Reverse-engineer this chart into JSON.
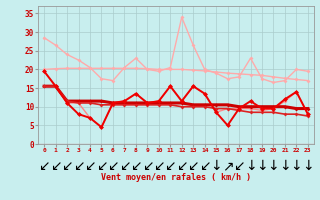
{
  "background_color": "#c8eeee",
  "grid_color": "#aacccc",
  "xlim": [
    -0.5,
    23.5
  ],
  "ylim": [
    0,
    37
  ],
  "yticks": [
    0,
    5,
    10,
    15,
    20,
    25,
    30,
    35
  ],
  "xticks": [
    0,
    1,
    2,
    3,
    4,
    5,
    6,
    7,
    8,
    9,
    10,
    11,
    12,
    13,
    14,
    15,
    16,
    17,
    18,
    19,
    20,
    21,
    22,
    23
  ],
  "hours": [
    0,
    1,
    2,
    3,
    4,
    5,
    6,
    7,
    8,
    9,
    10,
    11,
    12,
    13,
    14,
    15,
    16,
    17,
    18,
    19,
    20,
    21,
    22,
    23
  ],
  "xlabel": "Vent moyen/en rafales ( km/h )",
  "series": [
    {
      "name": "rafales_obs",
      "color": "#ffaaaa",
      "linewidth": 1.0,
      "marker": "D",
      "markersize": 2.0,
      "values": [
        28.5,
        26.5,
        24.0,
        22.5,
        20.5,
        17.5,
        17.0,
        20.5,
        23.0,
        20.0,
        19.5,
        20.5,
        34.0,
        26.5,
        20.0,
        19.0,
        17.5,
        18.0,
        23.0,
        17.5,
        16.5,
        17.0,
        20.0,
        19.5
      ]
    },
    {
      "name": "rafales_clim_mean",
      "color": "#ffaaaa",
      "linewidth": 1.0,
      "marker": "D",
      "markersize": 2.0,
      "values": [
        20.0,
        20.2,
        20.3,
        20.3,
        20.3,
        20.3,
        20.3,
        20.3,
        20.3,
        20.2,
        20.0,
        20.0,
        20.0,
        19.8,
        19.6,
        19.3,
        19.0,
        18.8,
        18.6,
        18.4,
        18.0,
        17.6,
        17.3,
        17.0
      ]
    },
    {
      "name": "vent_clim_top",
      "color": "#ff8888",
      "linewidth": 1.0,
      "marker": "D",
      "markersize": 2.0,
      "values": [
        19.5,
        15.5,
        11.0,
        11.0,
        7.0,
        4.5,
        11.0,
        11.5,
        13.5,
        11.0,
        11.5,
        15.5,
        11.5,
        15.5,
        13.5,
        8.5,
        9.5,
        9.5,
        9.5,
        9.0,
        9.5,
        11.5,
        14.0,
        8.0
      ]
    },
    {
      "name": "vent_clim_mean_bold",
      "color": "#cc0000",
      "linewidth": 2.2,
      "marker": "D",
      "markersize": 2.0,
      "values": [
        15.5,
        15.5,
        11.5,
        11.5,
        11.5,
        11.5,
        11.0,
        11.0,
        11.0,
        11.0,
        11.0,
        11.0,
        11.0,
        10.5,
        10.5,
        10.5,
        10.5,
        10.0,
        10.0,
        10.0,
        10.0,
        10.0,
        9.5,
        9.5
      ]
    },
    {
      "name": "vent_clim_mean2",
      "color": "#dd2222",
      "linewidth": 1.2,
      "marker": "D",
      "markersize": 2.0,
      "values": [
        15.5,
        15.5,
        11.5,
        11.0,
        11.0,
        10.5,
        10.5,
        10.5,
        10.5,
        10.5,
        10.5,
        10.5,
        10.0,
        10.0,
        10.0,
        9.5,
        9.5,
        9.0,
        8.5,
        8.5,
        8.5,
        8.0,
        8.0,
        7.5
      ]
    },
    {
      "name": "vent_obs",
      "color": "#ee0000",
      "linewidth": 1.4,
      "marker": "D",
      "markersize": 2.5,
      "values": [
        19.5,
        15.5,
        11.0,
        8.0,
        7.0,
        4.5,
        11.0,
        11.5,
        13.5,
        11.0,
        11.5,
        15.5,
        11.5,
        15.5,
        13.5,
        8.5,
        5.0,
        9.5,
        11.5,
        9.5,
        9.5,
        12.0,
        14.0,
        8.0
      ]
    }
  ],
  "arrow_symbols": [
    "↙",
    "↙",
    "↙",
    "↙",
    "↙",
    "↙",
    "↙",
    "↙",
    "↙",
    "↙",
    "↙",
    "↙",
    "↙",
    "↙",
    "↙",
    "↓",
    "↗",
    "↙",
    "↓",
    "↓",
    "↓",
    "↓",
    "↓",
    "↓"
  ]
}
